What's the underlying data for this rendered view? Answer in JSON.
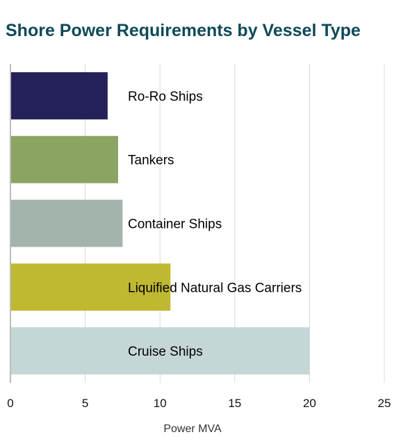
{
  "chart_data": {
    "type": "bar",
    "orientation": "horizontal",
    "title": "Shore Power Requirements by Vessel Type",
    "xlabel": "Power MVA",
    "ylabel": "",
    "xlim": [
      0,
      25
    ],
    "x_ticks": [
      "0",
      "5",
      "10",
      "15",
      "20",
      "25"
    ],
    "grid": true,
    "legend": "none",
    "categories": [
      "Ro-Ro Ships",
      "Tankers",
      "Container Ships",
      "Liquified Natural Gas Carriers",
      "Cruise Ships"
    ],
    "values": [
      6.5,
      7.2,
      7.5,
      10.7,
      20
    ],
    "colors": [
      "#25225a",
      "#8ba462",
      "#a2b4ac",
      "#bfb932",
      "#c5d6d6"
    ]
  }
}
